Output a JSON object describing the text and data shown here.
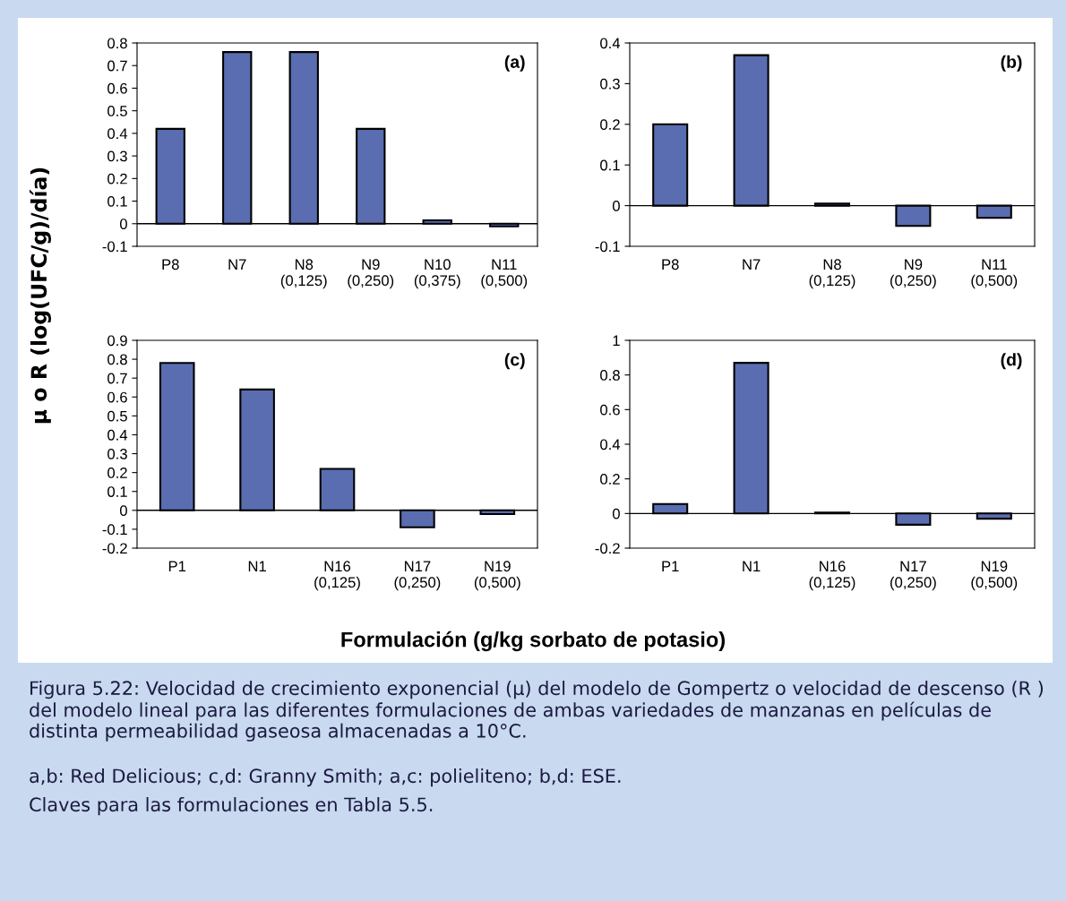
{
  "chart_data": [
    {
      "type": "bar",
      "title": "(a)",
      "ylabel": "μ o R (log(UFC/g)/día)",
      "categories": [
        "P8",
        "N7",
        "N8\n(0,125)",
        "N9\n(0,250)",
        "N10\n(0,375)",
        "N11\n(0,500)"
      ],
      "values": [
        0.42,
        0.76,
        0.76,
        0.42,
        0.015,
        -0.012
      ],
      "color": "#5a6db0",
      "ylim": [
        -0.1,
        0.8
      ],
      "yticks": [
        -0.1,
        0,
        0.1,
        0.2,
        0.3,
        0.4,
        0.5,
        0.6,
        0.7,
        0.8
      ],
      "legend": false
    },
    {
      "type": "bar",
      "title": "(b)",
      "categories": [
        "P8",
        "N7",
        "N8\n(0,125)",
        "N9\n(0,250)",
        "N11\n(0,500)"
      ],
      "values": [
        0.2,
        0.37,
        0.005,
        -0.05,
        -0.03
      ],
      "color": "#5a6db0",
      "ylim": [
        -0.1,
        0.4
      ],
      "yticks": [
        -0.1,
        0,
        0.1,
        0.2,
        0.3,
        0.4
      ],
      "legend": false
    },
    {
      "type": "bar",
      "title": "(c)",
      "xlabel": "Formulación (g/kg sorbato de potasio)",
      "categories": [
        "P1",
        "N1",
        "N16\n(0,125)",
        "N17\n(0,250)",
        "N19\n(0,500)"
      ],
      "values": [
        0.78,
        0.64,
        0.22,
        -0.09,
        -0.02
      ],
      "color": "#5a6db0",
      "ylim": [
        -0.2,
        0.9
      ],
      "yticks": [
        -0.2,
        -0.1,
        0,
        0.1,
        0.2,
        0.3,
        0.4,
        0.5,
        0.6,
        0.7,
        0.8,
        0.9
      ],
      "legend": false
    },
    {
      "type": "bar",
      "title": "(d)",
      "categories": [
        "P1",
        "N1",
        "N16\n(0,125)",
        "N17\n(0,250)",
        "N19\n(0,500)"
      ],
      "values": [
        0.055,
        0.87,
        0.005,
        -0.065,
        -0.03
      ],
      "color": "#5a6db0",
      "ylim": [
        -0.2,
        1
      ],
      "yticks": [
        -0.2,
        0,
        0.2,
        0.4,
        0.6,
        0.8,
        1
      ],
      "legend": false,
      "annotations": [
        "Figura 5.22: Velocidad de crecimiento exponencial (μ) del modelo de Gompertz o velocidad de descenso (R ) del modelo lineal para las diferentes formulaciones de ambas variedades de manzanas en películas de distinta permeabilidad gaseosa almacenadas a 10°C.",
        "a,b: Red Delicious; c,d: Granny Smith; a,c: polieliteno; b,d: ESE.",
        "Claves para las formulaciones en Tabla 5.5."
      ]
    }
  ]
}
